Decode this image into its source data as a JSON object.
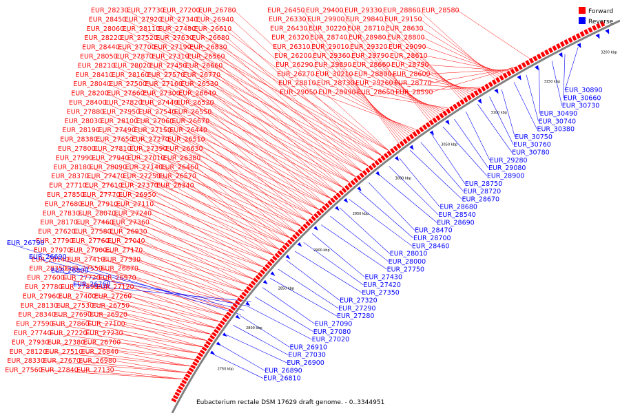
{
  "title": "Eubacterium rectale DSM 17629 draft genome. - 0..3344951",
  "legend": {
    "items": [
      {
        "label": "Forward",
        "color": "#ff0000"
      },
      {
        "label": "Reverse",
        "color": "#0000ff"
      }
    ]
  },
  "colors": {
    "forward": "#ff0000",
    "reverse": "#0000ff",
    "backbone": "#808080"
  },
  "axis": {
    "ticks": [
      "2750 kbp",
      "2800 kbp",
      "2850 kbp",
      "2900 kbp",
      "2950 kbp",
      "3000 kbp",
      "3050 kbp",
      "3100 kbp",
      "3150 kbp",
      "3200 kbp"
    ]
  },
  "forward_labels": [
    "EUR_28230",
    "EUR_28450",
    "EUR_28060",
    "EUR_28220",
    "EUR_28440",
    "EUR_28050",
    "EUR_28210",
    "EUR_28410",
    "EUR_28040",
    "EUR_28200",
    "EUR_28400",
    "EUR_27880",
    "EUR_28030",
    "EUR_28190",
    "EUR_28380",
    "EUR_27800",
    "EUR_27990",
    "EUR_28180",
    "EUR_28370",
    "EUR_27710",
    "EUR_27850",
    "EUR_27680",
    "EUR_27830",
    "EUR_28170",
    "EUR_27620",
    "EUR_27790",
    "EUR_27970",
    "EUR_28140",
    "EUR_28350",
    "EUR_27600",
    "EUR_27780",
    "EUR_27960",
    "EUR_28130",
    "EUR_28340",
    "EUR_27590",
    "EUR_27740",
    "EUR_27930",
    "EUR_28120",
    "EUR_28330",
    "EUR_27560",
    "EUR_27730",
    "EUR_27920",
    "EUR_28110",
    "EUR_27520",
    "EUR_27700",
    "EUR_27870",
    "EUR_28020",
    "EUR_28160",
    "EUR_27500",
    "EUR_27660",
    "EUR_27820",
    "EUR_27950",
    "EUR_28100",
    "EUR_27490",
    "EUR_27650",
    "EUR_27810",
    "EUR_27940",
    "EUR_28090",
    "EUR_27470",
    "EUR_27610",
    "EUR_27770",
    "EUR_27910",
    "EUR_28070",
    "EUR_27460",
    "EUR_27580",
    "EUR_27760",
    "EUR_27900",
    "EUR_27410",
    "EUR_27550",
    "EUR_27720",
    "EUR_27890",
    "EUR_27400",
    "EUR_27530",
    "EUR_27690",
    "EUR_27860",
    "EUR_27220",
    "EUR_27380",
    "EUR_27510",
    "EUR_27670",
    "EUR_27840",
    "EUR_27200",
    "EUR_27340",
    "EUR_27480",
    "EUR_27630",
    "EUR_27190",
    "EUR_27310",
    "EUR_27450",
    "EUR_27570",
    "EUR_27160",
    "EUR_27300",
    "EUR_27440",
    "EUR_27540",
    "EUR_27060",
    "EUR_27150",
    "EUR_27270",
    "EUR_27390",
    "EUR_27010",
    "EUR_27140",
    "EUR_27250",
    "EUR_27370",
    "EUR_26950",
    "EUR_27110",
    "EUR_27240",
    "EUR_27360",
    "EUR_26930",
    "EUR_27040",
    "EUR_27170",
    "EUR_27330",
    "EUR_26870",
    "EUR_26970",
    "EUR_27120",
    "EUR_27260",
    "EUR_26750",
    "EUR_26920",
    "EUR_27100",
    "EUR_27230",
    "EUR_26700",
    "EUR_26840",
    "EUR_26980",
    "EUR_27130",
    "EUR_26780",
    "EUR_26940",
    "EUR_26610",
    "EUR_26680",
    "EUR_26830",
    "EUR_26560",
    "EUR_26660",
    "EUR_26770",
    "EUR_26530",
    "EUR_26640",
    "EUR_26520",
    "EUR_26550",
    "EUR_26670",
    "EUR_26440",
    "EUR_26510",
    "EUR_26630",
    "EUR_26380",
    "EUR_26460",
    "EUR_26570",
    "EUR_26340",
    "EUR_26450",
    "EUR_26330",
    "EUR_26430",
    "EUR_26320",
    "EUR_26310",
    "EUR_26200",
    "EUR_26290",
    "EUR_26270",
    "EUR_28810",
    "EUR_29050",
    "EUR_29400",
    "EUR_29900",
    "EUR_30220",
    "EUR_28740",
    "EUR_29010",
    "EUR_29360",
    "EUR_29890",
    "EUR_30210",
    "EUR_28730",
    "EUR_28990",
    "EUR_29330",
    "EUR_29840",
    "EUR_28710",
    "EUR_28980",
    "EUR_29320",
    "EUR_29790",
    "EUR_28660",
    "EUR_28890",
    "EUR_29260",
    "EUR_28650",
    "EUR_28860",
    "EUR_29150",
    "EUR_28630",
    "EUR_28800",
    "EUR_29090",
    "EUR_28610",
    "EUR_28790",
    "EUR_28600",
    "EUR_28770",
    "EUR_28590",
    "EUR_28580"
  ],
  "reverse_labels": [
    "EUR_26790",
    "EUR_26690",
    "EUR_26800",
    "EUR_26760",
    "EUR_30890",
    "EUR_30660",
    "EUR_30730",
    "EUR_30490",
    "EUR_30740",
    "EUR_30380",
    "EUR_30750",
    "EUR_30760",
    "EUR_30780",
    "EUR_29280",
    "EUR_29080",
    "EUR_28900",
    "EUR_28750",
    "EUR_28720",
    "EUR_28670",
    "EUR_28680",
    "EUR_28540",
    "EUR_28690",
    "EUR_28470",
    "EUR_28700",
    "EUR_28460",
    "EUR_28010",
    "EUR_28000",
    "EUR_27750",
    "EUR_27430",
    "EUR_27420",
    "EUR_27350",
    "EUR_27320",
    "EUR_27290",
    "EUR_27280",
    "EUR_27090",
    "EUR_27080",
    "EUR_27020",
    "EUR_26910",
    "EUR_27030",
    "EUR_26900",
    "EUR_26890",
    "EUR_26810"
  ]
}
